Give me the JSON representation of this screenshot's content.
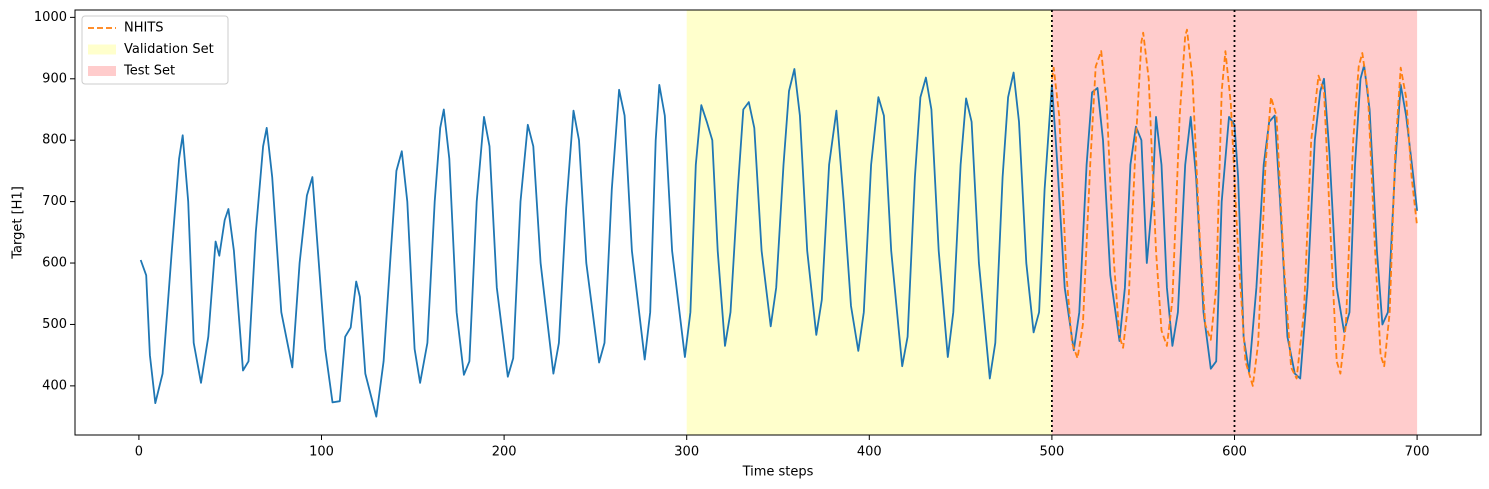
{
  "chart_data": {
    "type": "line",
    "xlabel": "Time steps",
    "ylabel": "Target [H1]",
    "xlim": [
      -35,
      735
    ],
    "ylim": [
      320,
      1012
    ],
    "xticks": [
      0,
      100,
      200,
      300,
      400,
      500,
      600,
      700
    ],
    "yticks": [
      400,
      500,
      600,
      700,
      800,
      900,
      1000
    ],
    "legend": "upper left",
    "spans": [
      {
        "name": "Validation Set",
        "start": 300,
        "end": 500,
        "color": "#ffff99"
      },
      {
        "name": "Test Set",
        "start": 500,
        "end": 700,
        "color": "#ff9a9a"
      }
    ],
    "vlines": [
      500,
      600
    ],
    "series": [
      {
        "color": "#1f77b4",
        "style": "solid",
        "x": [
          1,
          4,
          6,
          9,
          13,
          18,
          22,
          24,
          27,
          30,
          34,
          38,
          42,
          44,
          47,
          49,
          52,
          57,
          60,
          64,
          68,
          70,
          73,
          78,
          84,
          88,
          92,
          95,
          98,
          102,
          106,
          110,
          113,
          116,
          119,
          121,
          124,
          130,
          134,
          138,
          141,
          144,
          147,
          151,
          154,
          158,
          162,
          165,
          167,
          170,
          174,
          178,
          181,
          185,
          189,
          192,
          196,
          202,
          205,
          209,
          213,
          216,
          220,
          227,
          230,
          234,
          238,
          241,
          245,
          252,
          255,
          259,
          263,
          266,
          270,
          277,
          280,
          283,
          285,
          288,
          292,
          299,
          302,
          305,
          308,
          311,
          314,
          317,
          321,
          324,
          328,
          331,
          334,
          337,
          341,
          346,
          349,
          353,
          356,
          359,
          362,
          366,
          371,
          374,
          378,
          382,
          386,
          390,
          394,
          397,
          401,
          405,
          408,
          412,
          418,
          421,
          425,
          428,
          431,
          434,
          438,
          443,
          446,
          450,
          453,
          456,
          460,
          466,
          469,
          473,
          476,
          479,
          482,
          486,
          490,
          493,
          496,
          500,
          503,
          507,
          512,
          515,
          519,
          522,
          525,
          528,
          532,
          537,
          540,
          543,
          546,
          549,
          552,
          555,
          557,
          560,
          563,
          566,
          569,
          573,
          576,
          579,
          583,
          587,
          590,
          593,
          597,
          600,
          602,
          605,
          608,
          612,
          616,
          619,
          622,
          625,
          629,
          633,
          636,
          640,
          644,
          647,
          649,
          652,
          656,
          660,
          663,
          666,
          669,
          671,
          674,
          678,
          681,
          684,
          688,
          691,
          694,
          698,
          700
        ],
        "values": [
          605,
          580,
          450,
          372,
          420,
          620,
          770,
          808,
          700,
          470,
          405,
          480,
          635,
          612,
          670,
          688,
          620,
          425,
          440,
          650,
          790,
          820,
          740,
          520,
          430,
          600,
          710,
          740,
          620,
          460,
          373,
          375,
          480,
          495,
          570,
          545,
          420,
          350,
          440,
          620,
          750,
          782,
          700,
          460,
          405,
          470,
          700,
          820,
          850,
          770,
          520,
          418,
          440,
          700,
          838,
          790,
          560,
          415,
          445,
          700,
          825,
          790,
          600,
          420,
          470,
          690,
          848,
          800,
          600,
          438,
          470,
          720,
          882,
          840,
          620,
          443,
          520,
          800,
          890,
          840,
          620,
          447,
          520,
          760,
          857,
          830,
          800,
          620,
          465,
          520,
          720,
          850,
          862,
          820,
          620,
          497,
          560,
          760,
          880,
          916,
          840,
          620,
          483,
          540,
          760,
          848,
          700,
          530,
          457,
          520,
          760,
          870,
          840,
          620,
          432,
          480,
          740,
          870,
          902,
          850,
          620,
          447,
          520,
          760,
          868,
          830,
          600,
          412,
          470,
          740,
          870,
          910,
          830,
          600,
          487,
          520,
          720,
          890,
          760,
          560,
          458,
          520,
          760,
          878,
          885,
          800,
          580,
          473,
          560,
          760,
          822,
          800,
          600,
          700,
          838,
          760,
          560,
          465,
          520,
          760,
          838,
          740,
          520,
          428,
          440,
          700,
          838,
          825,
          740,
          480,
          422,
          560,
          760,
          830,
          840,
          700,
          480,
          420,
          412,
          560,
          800,
          880,
          900,
          780,
          560,
          488,
          520,
          760,
          900,
          922,
          850,
          620,
          500,
          520,
          760,
          890,
          840,
          740,
          685
        ]
      },
      {
        "name": "NHITS",
        "color": "#ff7f0e",
        "style": "dashed",
        "x": [
          500,
          501,
          504,
          508,
          511,
          514,
          517,
          521,
          524,
          527,
          530,
          534,
          537,
          539,
          542,
          546,
          549,
          550,
          553,
          557,
          560,
          563,
          566,
          570,
          573,
          574,
          577,
          581,
          584,
          587,
          590,
          593,
          595,
          598,
          602,
          606,
          610,
          613,
          617,
          620,
          623,
          627,
          631,
          634,
          638,
          642,
          646,
          649,
          653,
          656,
          658,
          661,
          665,
          668,
          670,
          673,
          677,
          680,
          682,
          685,
          688,
          691,
          694,
          697,
          700
        ],
        "values": [
          900,
          918,
          840,
          580,
          470,
          445,
          500,
          760,
          920,
          945,
          860,
          600,
          480,
          462,
          540,
          800,
          960,
          975,
          900,
          620,
          490,
          465,
          540,
          840,
          970,
          980,
          900,
          640,
          500,
          475,
          560,
          880,
          945,
          860,
          620,
          440,
          400,
          470,
          760,
          870,
          840,
          600,
          430,
          412,
          520,
          800,
          905,
          880,
          620,
          440,
          420,
          500,
          800,
          920,
          942,
          880,
          620,
          450,
          432,
          520,
          780,
          918,
          870,
          740,
          660
        ]
      }
    ]
  }
}
